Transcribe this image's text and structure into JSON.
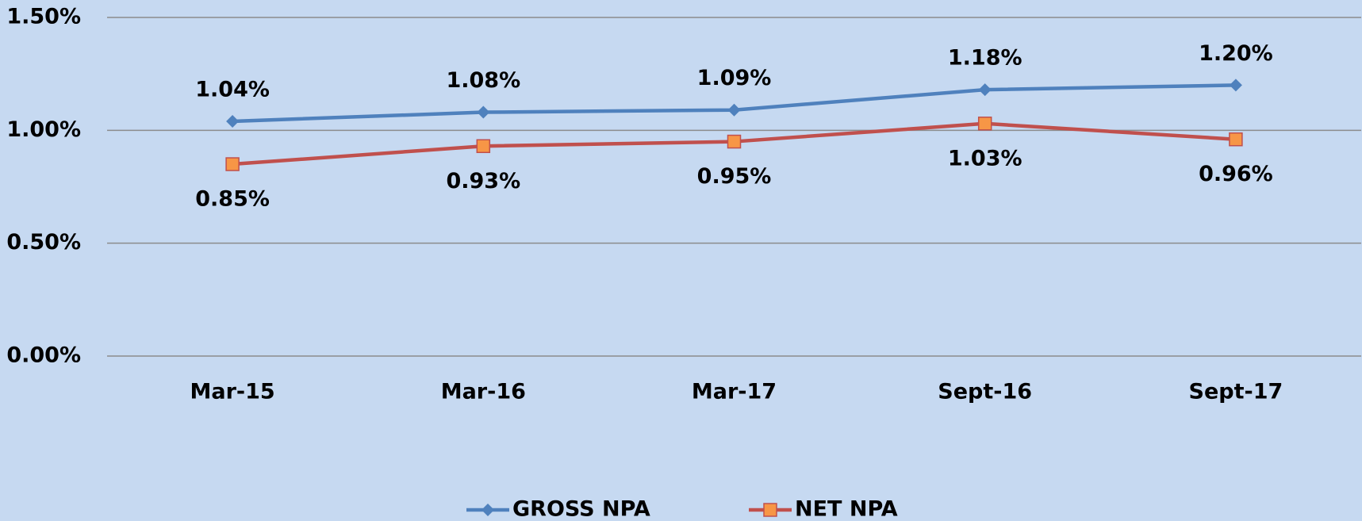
{
  "chart_data": {
    "type": "line",
    "categories": [
      "Mar-15",
      "Mar-16",
      "Mar-17",
      "Sept-16",
      "Sept-17"
    ],
    "series": [
      {
        "name": "GROSS NPA",
        "color": "#4f81bd",
        "marker": "diamond",
        "marker_color": "#4f81bd",
        "values": [
          1.04,
          1.08,
          1.09,
          1.18,
          1.2
        ],
        "value_labels": [
          "1.04%",
          "1.08%",
          "1.09%",
          "1.18%",
          "1.20%"
        ]
      },
      {
        "name": "NET NPA",
        "color": "#c0504d",
        "marker": "square",
        "marker_color": "#f79646",
        "values": [
          0.85,
          0.93,
          0.95,
          1.03,
          0.96
        ],
        "value_labels": [
          "0.85%",
          "0.93%",
          "0.95%",
          "1.03%",
          "0.96%"
        ]
      }
    ],
    "ylim": [
      0,
      1.5
    ],
    "yticks": [
      {
        "value": 0,
        "label": "0.00%"
      },
      {
        "value": 0.5,
        "label": "0.50%"
      },
      {
        "value": 1.0,
        "label": "1.00%"
      },
      {
        "value": 1.5,
        "label": "1.50%"
      }
    ],
    "grid": true,
    "legend": "bottom"
  }
}
